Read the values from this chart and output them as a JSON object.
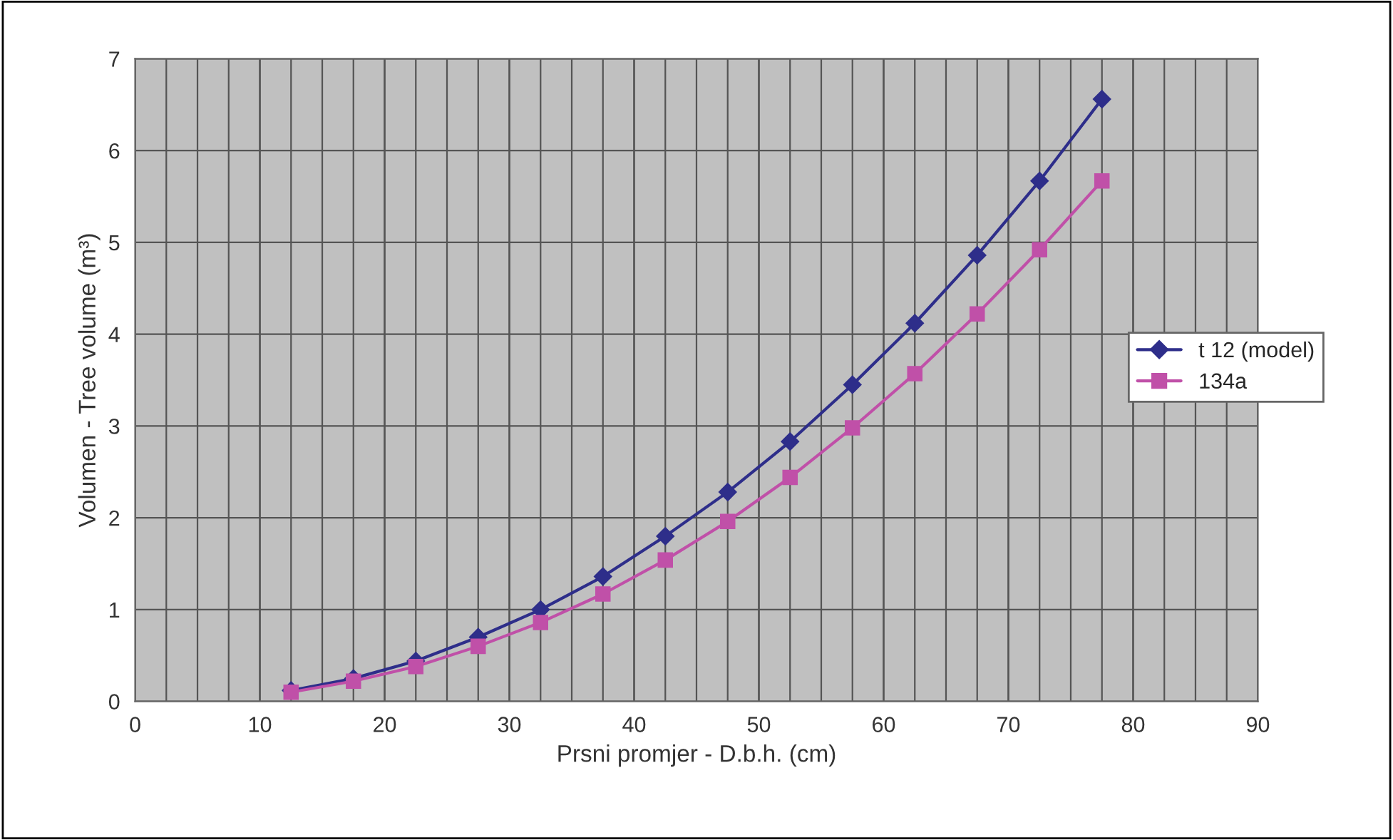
{
  "chart_data": {
    "type": "line",
    "xlabel": "Prsni promjer - D.b.h. (cm)",
    "ylabel": "Volumen - Tree volume (m³)",
    "x": [
      12.5,
      17.5,
      22.5,
      27.5,
      32.5,
      37.5,
      42.5,
      47.5,
      52.5,
      57.5,
      62.5,
      67.5,
      72.5,
      77.5
    ],
    "series": [
      {
        "name": "t 12 (model)",
        "color": "#2e2e8a",
        "marker": "diamond",
        "values": [
          0.12,
          0.25,
          0.44,
          0.7,
          1.0,
          1.36,
          1.8,
          2.28,
          2.83,
          3.45,
          4.12,
          4.86,
          5.67,
          6.56
        ]
      },
      {
        "name": "134a",
        "color": "#c050a8",
        "marker": "square",
        "values": [
          0.1,
          0.22,
          0.38,
          0.6,
          0.86,
          1.17,
          1.54,
          1.96,
          2.44,
          2.98,
          3.57,
          4.22,
          4.92,
          5.67
        ]
      }
    ],
    "xlim": [
      0,
      90
    ],
    "xticks": [
      0,
      10,
      20,
      30,
      40,
      50,
      60,
      70,
      80,
      90
    ],
    "ylim": [
      0,
      7
    ],
    "yticks": [
      0,
      1,
      2,
      3,
      4,
      5,
      6,
      7
    ],
    "grid": true,
    "legend": "right",
    "line_style": "solid"
  }
}
